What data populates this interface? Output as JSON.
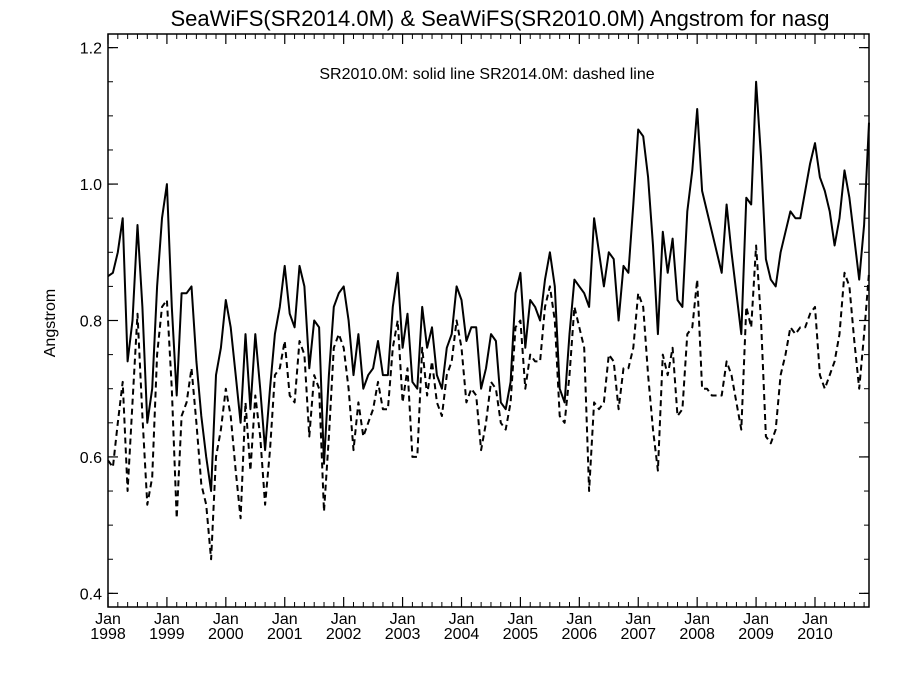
{
  "chart_data": {
    "type": "line",
    "title": "SeaWiFS(SR2014.0M) & SeaWiFS(SR2010.0M)  Angstrom for nasg",
    "annotation": "SR2010.0M: solid line   SR2014.0M: dashed line",
    "ylabel": "Angstrom",
    "xlabel": "",
    "ylim": [
      0.38,
      1.22
    ],
    "xlim": [
      "1998-01",
      "2010-12"
    ],
    "yticks": [
      0.4,
      0.6,
      0.8,
      1.0,
      1.2
    ],
    "ytick_labels": [
      "0.4",
      "0.6",
      "0.8",
      "1.0",
      "1.2"
    ],
    "xticks": [
      {
        "top": "Jan",
        "bottom": "1998",
        "date": "1998-01"
      },
      {
        "top": "Jan",
        "bottom": "1999",
        "date": "1999-01"
      },
      {
        "top": "Jan",
        "bottom": "2000",
        "date": "2000-01"
      },
      {
        "top": "Jan",
        "bottom": "2001",
        "date": "2001-01"
      },
      {
        "top": "Jan",
        "bottom": "2002",
        "date": "2002-01"
      },
      {
        "top": "Jan",
        "bottom": "2003",
        "date": "2003-01"
      },
      {
        "top": "Jan",
        "bottom": "2004",
        "date": "2004-01"
      },
      {
        "top": "Jan",
        "bottom": "2005",
        "date": "2005-01"
      },
      {
        "top": "Jan",
        "bottom": "2006",
        "date": "2006-01"
      },
      {
        "top": "Jan",
        "bottom": "2007",
        "date": "2007-01"
      },
      {
        "top": "Jan",
        "bottom": "2008",
        "date": "2008-01"
      },
      {
        "top": "Jan",
        "bottom": "2009",
        "date": "2009-01"
      },
      {
        "top": "Jan",
        "bottom": "2010",
        "date": "2010-01"
      }
    ],
    "grid": false,
    "start_month": "1998-01",
    "series": [
      {
        "style": "solid",
        "values": [
          0.865,
          0.87,
          0.9,
          0.95,
          0.74,
          0.8,
          0.94,
          0.82,
          0.65,
          0.7,
          0.85,
          0.95,
          1.0,
          0.82,
          0.69,
          0.84,
          0.84,
          0.85,
          0.74,
          0.66,
          0.6,
          0.55,
          0.72,
          0.76,
          0.83,
          0.79,
          0.72,
          0.65,
          0.78,
          0.67,
          0.78,
          0.7,
          0.61,
          0.7,
          0.78,
          0.82,
          0.88,
          0.81,
          0.79,
          0.88,
          0.85,
          0.73,
          0.8,
          0.79,
          0.59,
          0.72,
          0.82,
          0.84,
          0.85,
          0.8,
          0.72,
          0.78,
          0.7,
          0.72,
          0.73,
          0.77,
          0.72,
          0.72,
          0.82,
          0.87,
          0.76,
          0.81,
          0.71,
          0.7,
          0.82,
          0.76,
          0.79,
          0.72,
          0.7,
          0.76,
          0.78,
          0.85,
          0.83,
          0.77,
          0.79,
          0.79,
          0.7,
          0.73,
          0.78,
          0.77,
          0.68,
          0.67,
          0.71,
          0.84,
          0.87,
          0.76,
          0.83,
          0.82,
          0.8,
          0.86,
          0.9,
          0.85,
          0.7,
          0.68,
          0.78,
          0.86,
          0.85,
          0.84,
          0.82,
          0.95,
          0.9,
          0.85,
          0.9,
          0.89,
          0.8,
          0.88,
          0.87,
          0.97,
          1.08,
          1.07,
          1.01,
          0.91,
          0.78,
          0.93,
          0.87,
          0.92,
          0.83,
          0.82,
          0.96,
          1.02,
          1.11,
          0.99,
          0.96,
          0.93,
          0.9,
          0.87,
          0.97,
          0.9,
          0.84,
          0.78,
          0.98,
          0.97,
          1.15,
          1.04,
          0.89,
          0.86,
          0.85,
          0.9,
          0.93,
          0.96,
          0.95,
          0.95,
          0.99,
          1.03,
          1.06,
          1.01,
          0.99,
          0.96,
          0.91,
          0.95,
          1.02,
          0.98,
          0.92,
          0.86,
          0.94,
          1.09
        ]
      },
      {
        "style": "dashed",
        "values": [
          0.595,
          0.585,
          0.65,
          0.71,
          0.55,
          0.68,
          0.81,
          0.66,
          0.53,
          0.57,
          0.75,
          0.82,
          0.83,
          0.7,
          0.51,
          0.66,
          0.68,
          0.73,
          0.65,
          0.56,
          0.53,
          0.45,
          0.6,
          0.64,
          0.7,
          0.66,
          0.58,
          0.51,
          0.68,
          0.58,
          0.69,
          0.63,
          0.53,
          0.61,
          0.72,
          0.73,
          0.77,
          0.69,
          0.68,
          0.77,
          0.75,
          0.63,
          0.72,
          0.7,
          0.52,
          0.63,
          0.76,
          0.78,
          0.76,
          0.7,
          0.61,
          0.68,
          0.63,
          0.65,
          0.67,
          0.71,
          0.67,
          0.67,
          0.76,
          0.8,
          0.68,
          0.73,
          0.6,
          0.6,
          0.76,
          0.69,
          0.74,
          0.68,
          0.66,
          0.72,
          0.74,
          0.8,
          0.76,
          0.68,
          0.7,
          0.69,
          0.61,
          0.65,
          0.71,
          0.7,
          0.65,
          0.64,
          0.68,
          0.79,
          0.8,
          0.7,
          0.75,
          0.74,
          0.74,
          0.82,
          0.85,
          0.8,
          0.66,
          0.65,
          0.72,
          0.82,
          0.79,
          0.76,
          0.55,
          0.68,
          0.67,
          0.68,
          0.75,
          0.74,
          0.67,
          0.73,
          0.73,
          0.76,
          0.84,
          0.82,
          0.72,
          0.64,
          0.58,
          0.75,
          0.72,
          0.76,
          0.66,
          0.67,
          0.78,
          0.79,
          0.86,
          0.7,
          0.7,
          0.69,
          0.69,
          0.69,
          0.74,
          0.72,
          0.68,
          0.64,
          0.82,
          0.79,
          0.91,
          0.8,
          0.63,
          0.62,
          0.64,
          0.72,
          0.75,
          0.79,
          0.78,
          0.79,
          0.79,
          0.81,
          0.82,
          0.72,
          0.7,
          0.72,
          0.74,
          0.78,
          0.87,
          0.85,
          0.77,
          0.7,
          0.78,
          0.87
        ]
      }
    ]
  }
}
